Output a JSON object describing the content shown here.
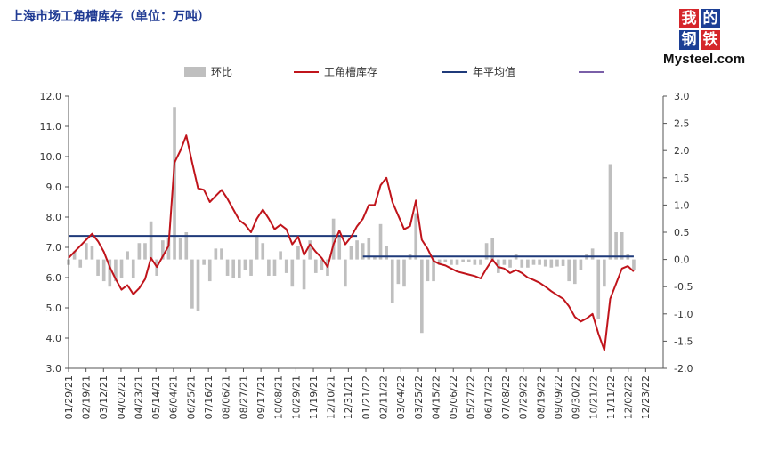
{
  "title": "上海市场工角槽库存（单位：万吨）",
  "logo": {
    "chars": [
      "我",
      "的",
      "钢",
      "铁"
    ],
    "box_colors": [
      "#d5262b",
      "#1c3f95",
      "#1c3f95",
      "#d5262b"
    ],
    "wordmark": "Mysteel.com"
  },
  "colors": {
    "bar": "#bfbfbf",
    "line": "#c0141b",
    "avg": "#1f3a7a",
    "extra": "#7a5fa8",
    "axis": "#555555",
    "text": "#333333"
  },
  "chart_data": {
    "type": "bar+line",
    "legend": {
      "placement": "top",
      "items": [
        {
          "label": "环比",
          "kind": "bar"
        },
        {
          "label": "工角槽库存",
          "kind": "line"
        },
        {
          "label": "年平均值",
          "kind": "line"
        },
        {
          "label": "",
          "kind": "line"
        }
      ]
    },
    "x_tick_labels": [
      "01/29/21",
      "02/19/21",
      "03/12/21",
      "04/02/21",
      "04/23/21",
      "05/14/21",
      "06/04/21",
      "06/25/21",
      "07/16/21",
      "08/06/21",
      "08/27/21",
      "09/17/21",
      "10/08/21",
      "10/29/21",
      "11/19/21",
      "12/10/21",
      "12/31/21",
      "01/21/22",
      "02/11/22",
      "03/04/22",
      "03/25/22",
      "04/15/22",
      "05/06/22",
      "05/27/22",
      "06/17/22",
      "07/08/22",
      "07/29/22",
      "08/19/22",
      "09/09/22",
      "09/30/22",
      "10/21/22",
      "11/11/22",
      "12/02/22",
      "12/23/22"
    ],
    "x_range": [
      0,
      101
    ],
    "y_left": {
      "min": 3.0,
      "max": 12.0,
      "step": 1.0,
      "ticks": [
        "3.0",
        "4.0",
        "5.0",
        "6.0",
        "7.0",
        "8.0",
        "9.0",
        "10.0",
        "11.0",
        "12.0"
      ]
    },
    "y_right": {
      "min": -2.0,
      "max": 3.0,
      "step": 0.5,
      "ticks": [
        "-2.0",
        "-1.5",
        "-1.0",
        "-0.5",
        "0.0",
        "0.5",
        "1.0",
        "1.5",
        "2.0",
        "2.5",
        "3.0"
      ]
    },
    "inventory": [
      [
        0,
        6.65
      ],
      [
        1,
        6.85
      ],
      [
        2,
        7.05
      ],
      [
        3,
        7.25
      ],
      [
        4,
        7.45
      ],
      [
        5,
        7.2
      ],
      [
        6,
        6.85
      ],
      [
        7,
        6.35
      ],
      [
        8,
        5.95
      ],
      [
        9,
        5.6
      ],
      [
        10,
        5.75
      ],
      [
        11,
        5.45
      ],
      [
        12,
        5.65
      ],
      [
        13,
        5.95
      ],
      [
        14,
        6.65
      ],
      [
        15,
        6.35
      ],
      [
        16,
        6.7
      ],
      [
        17,
        7.05
      ],
      [
        18,
        9.8
      ],
      [
        19,
        10.2
      ],
      [
        20,
        10.7
      ],
      [
        21,
        9.8
      ],
      [
        22,
        8.95
      ],
      [
        23,
        8.9
      ],
      [
        24,
        8.5
      ],
      [
        25,
        8.7
      ],
      [
        26,
        8.9
      ],
      [
        27,
        8.6
      ],
      [
        28,
        8.25
      ],
      [
        29,
        7.9
      ],
      [
        30,
        7.75
      ],
      [
        31,
        7.5
      ],
      [
        32,
        7.95
      ],
      [
        33,
        8.25
      ],
      [
        34,
        7.95
      ],
      [
        35,
        7.6
      ],
      [
        36,
        7.75
      ],
      [
        37,
        7.6
      ],
      [
        38,
        7.1
      ],
      [
        39,
        7.35
      ],
      [
        40,
        6.75
      ],
      [
        41,
        7.1
      ],
      [
        42,
        6.85
      ],
      [
        43,
        6.65
      ],
      [
        44,
        6.35
      ],
      [
        45,
        7.1
      ],
      [
        46,
        7.55
      ],
      [
        47,
        7.1
      ],
      [
        48,
        7.35
      ],
      [
        49,
        7.7
      ],
      [
        50,
        7.95
      ],
      [
        51,
        8.4
      ],
      [
        52,
        8.4
      ],
      [
        53,
        9.05
      ],
      [
        54,
        9.3
      ],
      [
        55,
        8.5
      ],
      [
        56,
        8.05
      ],
      [
        57,
        7.6
      ],
      [
        58,
        7.7
      ],
      [
        59,
        8.55
      ],
      [
        60,
        7.25
      ],
      [
        61,
        6.95
      ],
      [
        62,
        6.55
      ],
      [
        63,
        6.45
      ],
      [
        64,
        6.4
      ],
      [
        65,
        6.3
      ],
      [
        66,
        6.2
      ],
      [
        67,
        6.15
      ],
      [
        68,
        6.1
      ],
      [
        69,
        6.05
      ],
      [
        70,
        5.97
      ],
      [
        71,
        6.3
      ],
      [
        72,
        6.6
      ],
      [
        73,
        6.35
      ],
      [
        74,
        6.3
      ],
      [
        75,
        6.15
      ],
      [
        76,
        6.25
      ],
      [
        77,
        6.15
      ],
      [
        78,
        6.0
      ],
      [
        79,
        5.92
      ],
      [
        80,
        5.83
      ],
      [
        81,
        5.7
      ],
      [
        82,
        5.55
      ],
      [
        83,
        5.42
      ],
      [
        84,
        5.3
      ],
      [
        85,
        5.05
      ],
      [
        86,
        4.7
      ],
      [
        87,
        4.55
      ],
      [
        88,
        4.65
      ],
      [
        89,
        4.8
      ],
      [
        90,
        4.15
      ],
      [
        91,
        3.6
      ],
      [
        92,
        5.3
      ],
      [
        93,
        5.8
      ],
      [
        94,
        6.3
      ],
      [
        95,
        6.38
      ],
      [
        96,
        6.2
      ]
    ],
    "wow_change": [
      [
        0,
        -0.1
      ],
      [
        1,
        0.15
      ],
      [
        2,
        -0.15
      ],
      [
        3,
        0.3
      ],
      [
        4,
        0.25
      ],
      [
        5,
        -0.3
      ],
      [
        6,
        -0.4
      ],
      [
        7,
        -0.5
      ],
      [
        8,
        -0.4
      ],
      [
        9,
        -0.35
      ],
      [
        10,
        0.15
      ],
      [
        11,
        -0.35
      ],
      [
        12,
        0.3
      ],
      [
        13,
        0.3
      ],
      [
        14,
        0.7
      ],
      [
        15,
        -0.3
      ],
      [
        16,
        0.35
      ],
      [
        17,
        0.4
      ],
      [
        18,
        2.8
      ],
      [
        19,
        0.4
      ],
      [
        20,
        0.5
      ],
      [
        21,
        -0.9
      ],
      [
        22,
        -0.95
      ],
      [
        23,
        -0.1
      ],
      [
        24,
        -0.4
      ],
      [
        25,
        0.2
      ],
      [
        26,
        0.2
      ],
      [
        27,
        -0.3
      ],
      [
        28,
        -0.35
      ],
      [
        29,
        -0.35
      ],
      [
        30,
        -0.2
      ],
      [
        31,
        -0.3
      ],
      [
        32,
        0.45
      ],
      [
        33,
        0.3
      ],
      [
        34,
        -0.3
      ],
      [
        35,
        -0.3
      ],
      [
        36,
        0.15
      ],
      [
        37,
        -0.25
      ],
      [
        38,
        -0.5
      ],
      [
        39,
        0.25
      ],
      [
        40,
        -0.55
      ],
      [
        41,
        0.35
      ],
      [
        42,
        -0.25
      ],
      [
        43,
        -0.2
      ],
      [
        44,
        -0.3
      ],
      [
        45,
        0.75
      ],
      [
        46,
        0.45
      ],
      [
        47,
        -0.5
      ],
      [
        48,
        0.25
      ],
      [
        49,
        0.35
      ],
      [
        50,
        0.3
      ],
      [
        51,
        0.4
      ],
      [
        52,
        0.05
      ],
      [
        53,
        0.65
      ],
      [
        54,
        0.25
      ],
      [
        55,
        -0.8
      ],
      [
        56,
        -0.45
      ],
      [
        57,
        -0.5
      ],
      [
        58,
        0.1
      ],
      [
        59,
        0.85
      ],
      [
        60,
        -1.35
      ],
      [
        61,
        -0.4
      ],
      [
        62,
        -0.4
      ],
      [
        63,
        -0.1
      ],
      [
        64,
        -0.05
      ],
      [
        65,
        -0.1
      ],
      [
        66,
        -0.1
      ],
      [
        67,
        -0.05
      ],
      [
        68,
        -0.05
      ],
      [
        69,
        -0.1
      ],
      [
        70,
        -0.1
      ],
      [
        71,
        0.3
      ],
      [
        72,
        0.4
      ],
      [
        73,
        -0.25
      ],
      [
        74,
        -0.1
      ],
      [
        75,
        -0.15
      ],
      [
        76,
        0.1
      ],
      [
        77,
        -0.15
      ],
      [
        78,
        -0.15
      ],
      [
        79,
        -0.1
      ],
      [
        80,
        -0.1
      ],
      [
        81,
        -0.13
      ],
      [
        82,
        -0.15
      ],
      [
        83,
        -0.13
      ],
      [
        84,
        -0.12
      ],
      [
        85,
        -0.4
      ],
      [
        86,
        -0.45
      ],
      [
        87,
        -0.2
      ],
      [
        88,
        0.1
      ],
      [
        89,
        0.2
      ],
      [
        90,
        -1.1
      ],
      [
        91,
        -0.5
      ],
      [
        92,
        1.75
      ],
      [
        93,
        0.5
      ],
      [
        94,
        0.5
      ],
      [
        95,
        0.1
      ],
      [
        96,
        -0.2
      ]
    ],
    "annual_average": [
      {
        "year": "2021",
        "x": [
          0,
          49
        ],
        "value": 7.38
      },
      {
        "year": "2022",
        "x": [
          50,
          96
        ],
        "value": 6.7
      }
    ]
  }
}
